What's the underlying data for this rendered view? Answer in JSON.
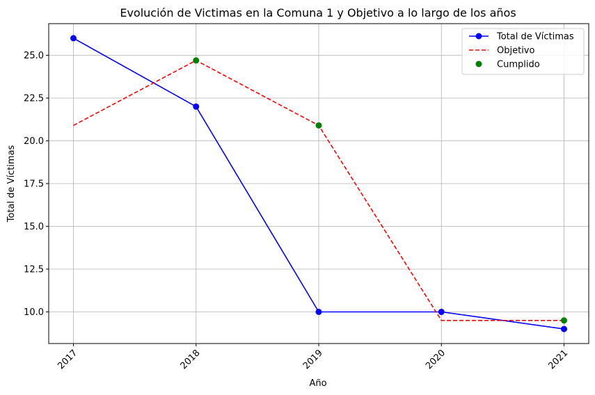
{
  "chart_data": {
    "type": "line",
    "title": "Evolución de Victimas en la Comuna 1 y Objetivo a lo largo de los años",
    "xlabel": "Año",
    "ylabel": "Total de Víctimas",
    "x": [
      "2017",
      "2018",
      "2019",
      "2020",
      "2021"
    ],
    "yticks": [
      "10.0",
      "12.5",
      "15.0",
      "17.5",
      "20.0",
      "22.5",
      "25.0"
    ],
    "ylim": [
      8.15,
      26.85
    ],
    "grid": true,
    "legend_position": "top-right",
    "series": [
      {
        "name": "Total de Víctimas",
        "style": "line-marker",
        "color": "#0000ff",
        "values": [
          26,
          22,
          10,
          10,
          9
        ]
      },
      {
        "name": "Objetivo",
        "style": "dashed",
        "color": "#ff0000",
        "values": [
          20.9,
          24.7,
          20.9,
          9.5,
          9.5
        ]
      },
      {
        "name": "Cumplido",
        "style": "scatter",
        "color": "#008000",
        "x": [
          "2018",
          "2019",
          "2021"
        ],
        "values": [
          24.7,
          20.9,
          9.5
        ]
      }
    ]
  }
}
